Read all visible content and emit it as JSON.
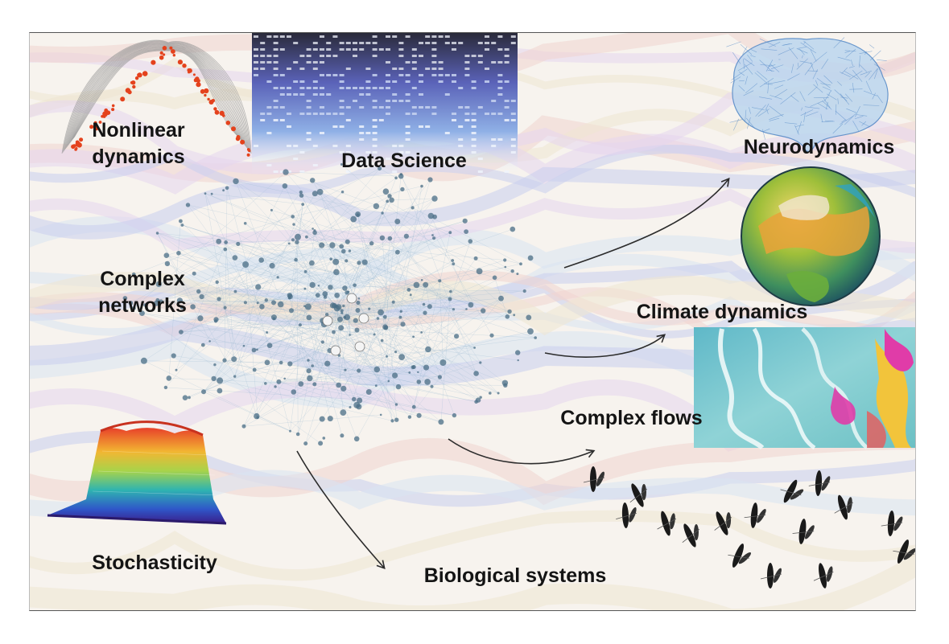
{
  "labels": {
    "nonlinear_dynamics": "Nonlinear\ndynamics",
    "data_science": "Data Science",
    "complex_networks": "Complex\nnetworks",
    "neurodynamics": "Neurodynamics",
    "climate_dynamics": "Climate dynamics",
    "complex_flows": "Complex flows",
    "stochasticity": "Stochasticity",
    "biological_systems": "Biological systems"
  },
  "colors": {
    "network_node": "#4a6d86",
    "network_link": "#8fb2cc",
    "brain": "#4f86c6",
    "arrow": "#2c2c2c",
    "attractor_points": "#e4421d",
    "flow_magenta": "#e03ca8",
    "flow_yellow": "#f2c43b"
  },
  "icons": [
    "attractor-image",
    "data-matrix-image",
    "network-graph",
    "brain-image",
    "globe-image",
    "flow-image",
    "surface-plot-image",
    "bird-flock-image"
  ]
}
